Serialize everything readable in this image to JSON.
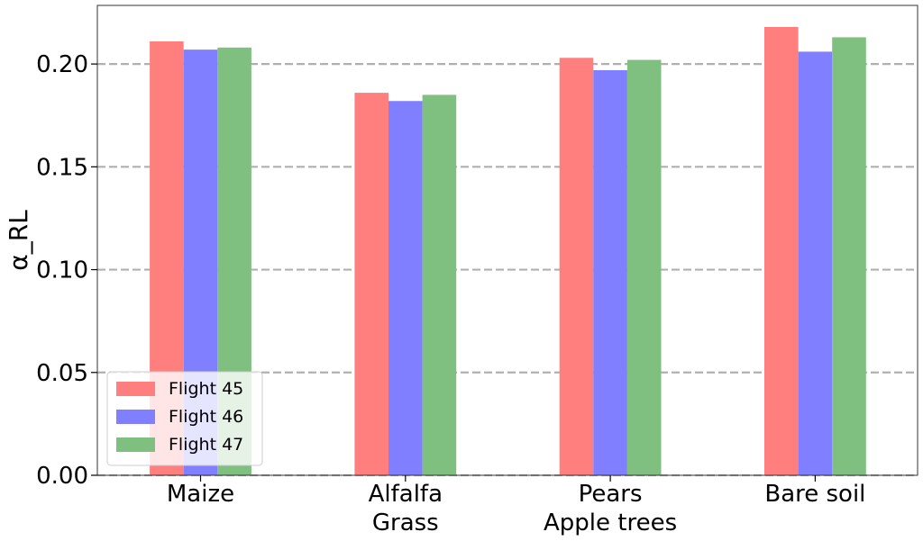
{
  "chart_data": {
    "type": "bar",
    "categories": [
      [
        "Maize"
      ],
      [
        "Alfalfa",
        "Grass"
      ],
      [
        "Pears",
        "Apple trees"
      ],
      [
        "Bare soil"
      ]
    ],
    "series": [
      {
        "name": "Flight 45",
        "color": "#ff7f7f",
        "values": [
          0.211,
          0.186,
          0.203,
          0.218
        ]
      },
      {
        "name": "Flight 46",
        "color": "#7f7fff",
        "values": [
          0.207,
          0.182,
          0.197,
          0.206
        ]
      },
      {
        "name": "Flight 47",
        "color": "#7fbf7f",
        "values": [
          0.208,
          0.185,
          0.202,
          0.213
        ]
      }
    ],
    "title": "",
    "xlabel": "",
    "ylabel": "α_RL",
    "ylim": [
      0,
      0.2285
    ],
    "yticks": [
      0.0,
      0.05,
      0.1,
      0.15,
      0.2
    ],
    "ytick_labels": [
      "0.00",
      "0.05",
      "0.10",
      "0.15",
      "0.20"
    ],
    "grid": "y, dashed",
    "legend_position": "lower-left"
  }
}
